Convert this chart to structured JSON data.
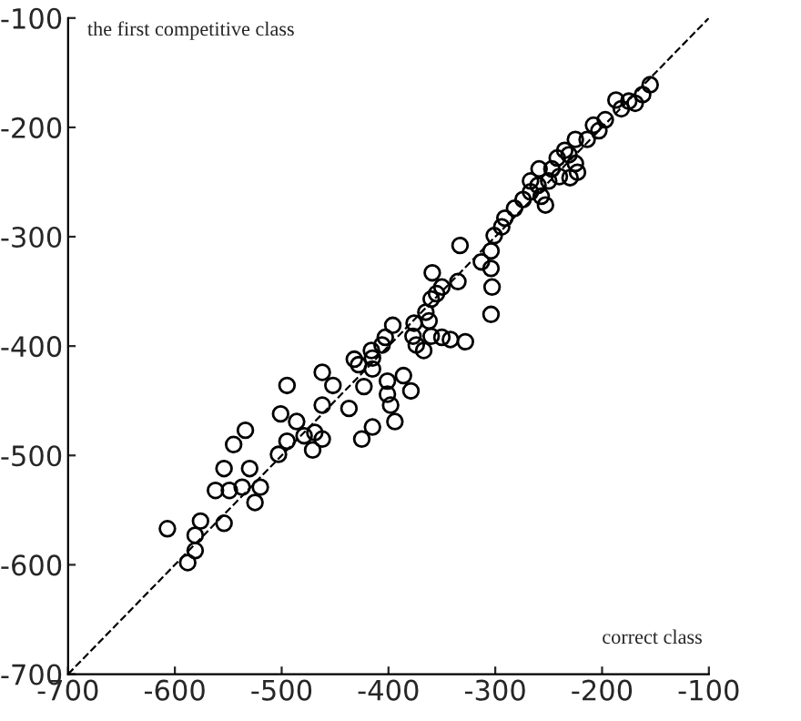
{
  "chart_data": {
    "type": "scatter",
    "xlabel": "correct class",
    "ylabel": "the first competitive class",
    "xlim": [
      -700,
      -100
    ],
    "ylim": [
      -700,
      -100
    ],
    "xticks": [
      -700,
      -600,
      -500,
      -400,
      -300,
      -200,
      -100
    ],
    "yticks": [
      -700,
      -600,
      -500,
      -400,
      -300,
      -200,
      -100
    ],
    "grid": false,
    "legend": false,
    "series": [
      {
        "color": "#000000",
        "marker": "circle",
        "x": [
          -155,
          -162,
          -169,
          -175,
          -182,
          -187,
          -197,
          -203,
          -208,
          -214,
          -225,
          -235,
          -242,
          -231,
          -225,
          -247,
          -259,
          -267,
          -260,
          -250,
          -240,
          -230,
          -223,
          -267,
          -257,
          -253,
          -274,
          -282,
          -291,
          -294,
          -301,
          -313,
          -304,
          -304,
          -303,
          -304,
          -333,
          -335,
          -359,
          -350,
          -355,
          -360,
          -365,
          -362,
          -376,
          -360,
          -350,
          -342,
          -328,
          -374,
          -367,
          -377,
          -396,
          -403,
          -406,
          -415,
          -428,
          -462,
          -495,
          -452,
          -432,
          -416,
          -415,
          -401,
          -401,
          -398,
          -394,
          -386,
          -379,
          -423,
          -437,
          -425,
          -415,
          -462,
          -469,
          -462,
          -479,
          -486,
          -501,
          -503,
          -495,
          -471,
          -534,
          -545,
          -554,
          -530,
          -562,
          -549,
          -537,
          -520,
          -525,
          -554,
          -576,
          -581,
          -581,
          -588,
          -607
        ],
        "values": [
          -161,
          -170,
          -178,
          -176,
          -183,
          -175,
          -193,
          -203,
          -198,
          -211,
          -211,
          -221,
          -228,
          -225,
          -233,
          -238,
          -238,
          -249,
          -253,
          -249,
          -245,
          -246,
          -241,
          -259,
          -263,
          -271,
          -266,
          -274,
          -283,
          -291,
          -299,
          -323,
          -313,
          -329,
          -346,
          -371,
          -308,
          -341,
          -333,
          -346,
          -352,
          -357,
          -369,
          -377,
          -379,
          -391,
          -392,
          -394,
          -396,
          -399,
          -404,
          -391,
          -381,
          -392,
          -399,
          -411,
          -417,
          -424,
          -436,
          -436,
          -412,
          -404,
          -421,
          -432,
          -444,
          -454,
          -469,
          -427,
          -441,
          -437,
          -457,
          -485,
          -474,
          -454,
          -479,
          -485,
          -482,
          -469,
          -462,
          -499,
          -487,
          -495,
          -477,
          -490,
          -512,
          -512,
          -532,
          -532,
          -529,
          -529,
          -543,
          -562,
          -560,
          -573,
          -587,
          -598,
          -567
        ]
      },
      {
        "type": "line",
        "color": "#000000",
        "line_style": "dashed",
        "marker": "none",
        "x": [
          -700,
          -100
        ],
        "values": [
          -700,
          -100
        ]
      }
    ]
  }
}
